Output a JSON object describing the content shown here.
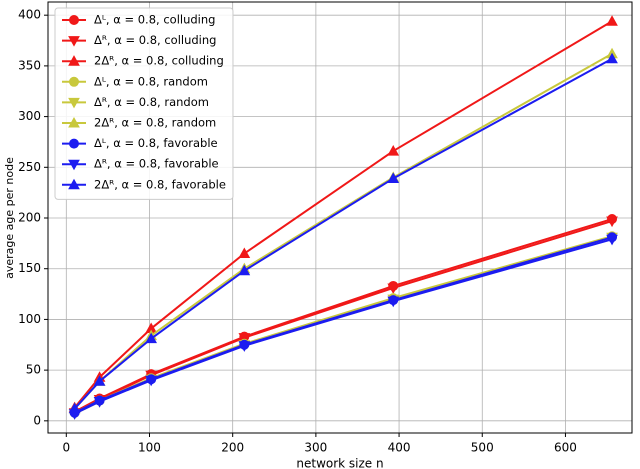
{
  "chart_data": {
    "type": "line",
    "x_label": "network size n",
    "y_label": "average age per node",
    "x": [
      10,
      40,
      102,
      214,
      393,
      656
    ],
    "xlim": [
      -22,
      680
    ],
    "xticks": [
      0,
      100,
      200,
      300,
      400,
      500,
      600
    ],
    "ylim": [
      -12,
      413
    ],
    "yticks": [
      0,
      50,
      100,
      150,
      200,
      250,
      300,
      350,
      400
    ],
    "grid": true,
    "legend": "upper left",
    "series": [
      {
        "name": "Δᴸ, α = 0.8, colluding",
        "color": "#f01818",
        "marker": "o",
        "values": [
          9,
          22,
          46,
          83,
          133,
          199
        ]
      },
      {
        "name": "Δᴿ, α = 0.8, colluding",
        "color": "#f01818",
        "marker": "v",
        "values": [
          8,
          21,
          45,
          82,
          131,
          197
        ]
      },
      {
        "name": "2Δᴿ, α = 0.8, colluding",
        "color": "#f01818",
        "marker": "^",
        "values": [
          13,
          43,
          91,
          165,
          266,
          394
        ]
      },
      {
        "name": "Δᴸ, α = 0.8, random",
        "color": "#c8c83c",
        "marker": "o",
        "values": [
          8,
          20,
          42,
          76,
          121,
          182
        ]
      },
      {
        "name": "Δᴿ, α = 0.8, random",
        "color": "#c8c83c",
        "marker": "v",
        "values": [
          7,
          19,
          41,
          75,
          120,
          181
        ]
      },
      {
        "name": "2Δᴿ, α = 0.8, random",
        "color": "#c8c83c",
        "marker": "^",
        "values": [
          12,
          39,
          84,
          150,
          240,
          362
        ]
      },
      {
        "name": "Δᴸ, α = 0.8, favorable",
        "color": "#1c1cf0",
        "marker": "o",
        "values": [
          8,
          20,
          41,
          75,
          119,
          181
        ]
      },
      {
        "name": "Δᴿ, α = 0.8, favorable",
        "color": "#1c1cf0",
        "marker": "v",
        "values": [
          7,
          19,
          40,
          74,
          118,
          179
        ]
      },
      {
        "name": "2Δᴿ, α = 0.8, favorable",
        "color": "#1c1cf0",
        "marker": "^",
        "values": [
          12,
          39,
          81,
          148,
          239,
          357
        ]
      }
    ]
  }
}
